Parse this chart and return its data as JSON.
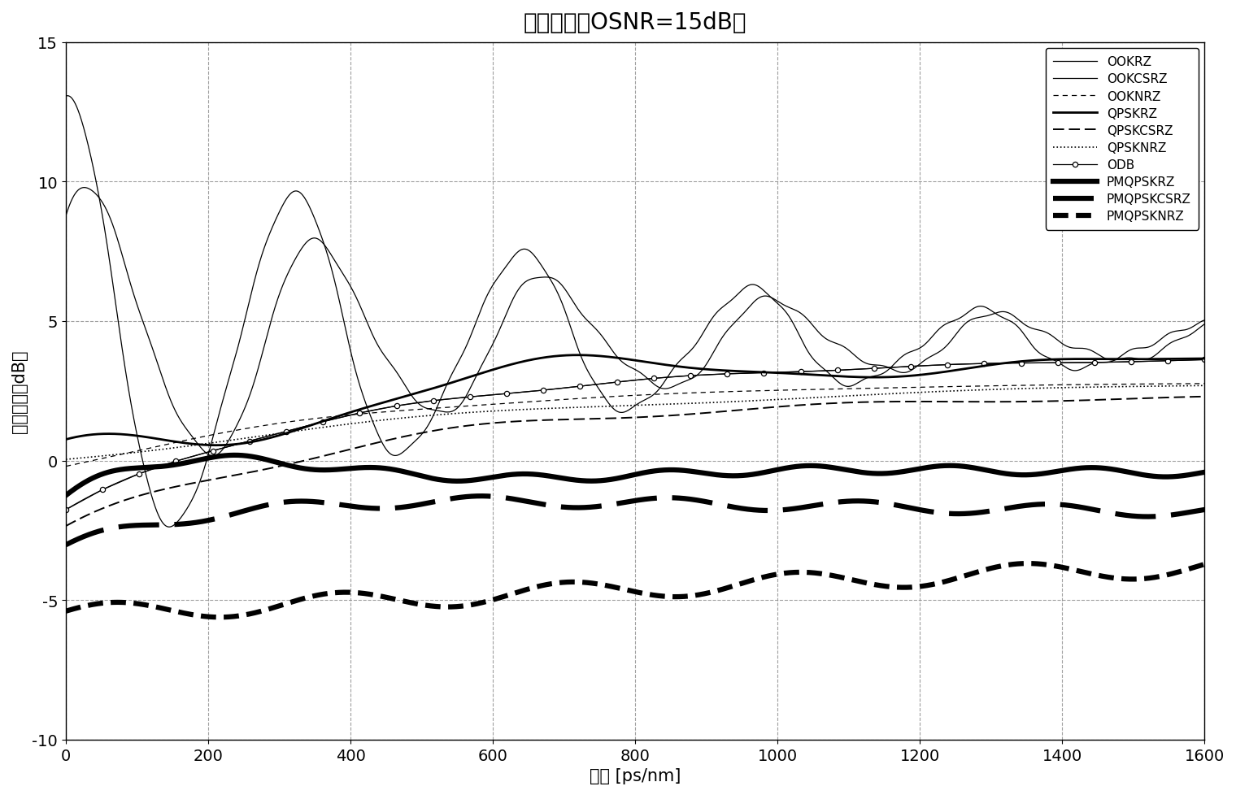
{
  "title": "特征曲线（OSNR=15dB）",
  "xlabel": "色散 [ps/nm]",
  "ylabel": "输出信号（dB）",
  "xlim": [
    0,
    1600
  ],
  "ylim": [
    -10,
    15
  ],
  "xticks": [
    0,
    200,
    400,
    600,
    800,
    1000,
    1200,
    1400,
    1600
  ],
  "yticks": [
    -10,
    -5,
    0,
    5,
    10,
    15
  ],
  "legend_entries": [
    "OOKRZ",
    "OOKCSRZ",
    "OOKNRZ",
    "QPSKRZ",
    "QPSKCSRZ",
    "QPSKNRZ",
    "ODB",
    "PMQPSKRZ",
    "PMQPSKCSRZ",
    "PMQPSKNRZ"
  ],
  "title_fontsize": 20,
  "label_fontsize": 15,
  "legend_fontsize": 11,
  "tick_fontsize": 14
}
